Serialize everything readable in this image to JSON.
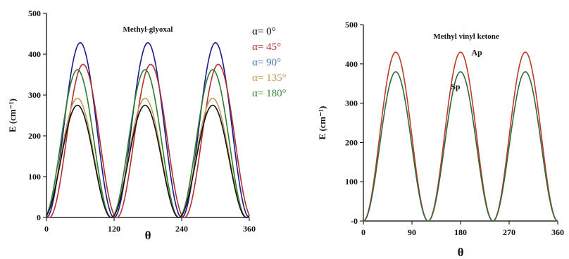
{
  "chart_data": [
    {
      "type": "line",
      "title": "Methyl-glyoxal",
      "xlabel": "θ",
      "ylabel": "E (cm⁻¹)",
      "xlim": [
        0,
        360
      ],
      "ylim": [
        0,
        500
      ],
      "xticks": [
        "0",
        "120",
        "240",
        "360"
      ],
      "yticks": [
        "0",
        "100",
        "200",
        "300",
        "400",
        "500"
      ],
      "x_tick_values": [
        0,
        120,
        240,
        360
      ],
      "y_tick_values": [
        0,
        100,
        200,
        300,
        400,
        500
      ],
      "legend_placement": "top-right",
      "legend": [
        {
          "label": "α= 0°",
          "color": "#000000"
        },
        {
          "label": "α= 45°",
          "color": "#b03030"
        },
        {
          "label": "α= 90°",
          "color": "#4a76b0"
        },
        {
          "label": "α= 135°",
          "color": "#c49a55"
        },
        {
          "label": "α= 180°",
          "color": "#3a8a3a"
        }
      ],
      "series": [
        {
          "color": "#1a1a8c",
          "peak": 428,
          "peak_x": [
            60,
            180,
            300
          ]
        },
        {
          "color": "#b03030",
          "peak": 375,
          "peak_x": [
            65,
            185,
            305
          ]
        },
        {
          "color": "#2e7d2e",
          "peak": 362,
          "peak_x": [
            55,
            175,
            295
          ]
        },
        {
          "color": "#c49a55",
          "peak": 292,
          "peak_x": [
            55,
            175,
            295
          ]
        },
        {
          "color": "#111111",
          "peak": 275,
          "peak_x": [
            55,
            175,
            295
          ]
        }
      ]
    },
    {
      "type": "line",
      "title": "Methyl vinyl ketone",
      "xlabel": "θ",
      "ylabel": "E (cm⁻¹)",
      "xlim": [
        0,
        360
      ],
      "ylim": [
        0,
        500
      ],
      "xticks": [
        "0",
        "90",
        "180",
        "270",
        "360"
      ],
      "yticks": [
        "-0",
        "100",
        "200",
        "300",
        "400",
        "500"
      ],
      "x_tick_values": [
        0,
        90,
        180,
        270,
        360
      ],
      "y_tick_values": [
        0,
        100,
        200,
        300,
        400,
        500
      ],
      "series": [
        {
          "name": "Ap",
          "color": "#c0392b",
          "peak": 430,
          "peak_x": [
            60,
            180,
            300
          ]
        },
        {
          "name": "Sp",
          "color": "#2e6b3a",
          "peak": 380,
          "peak_x": [
            60,
            180,
            300
          ]
        }
      ]
    }
  ]
}
